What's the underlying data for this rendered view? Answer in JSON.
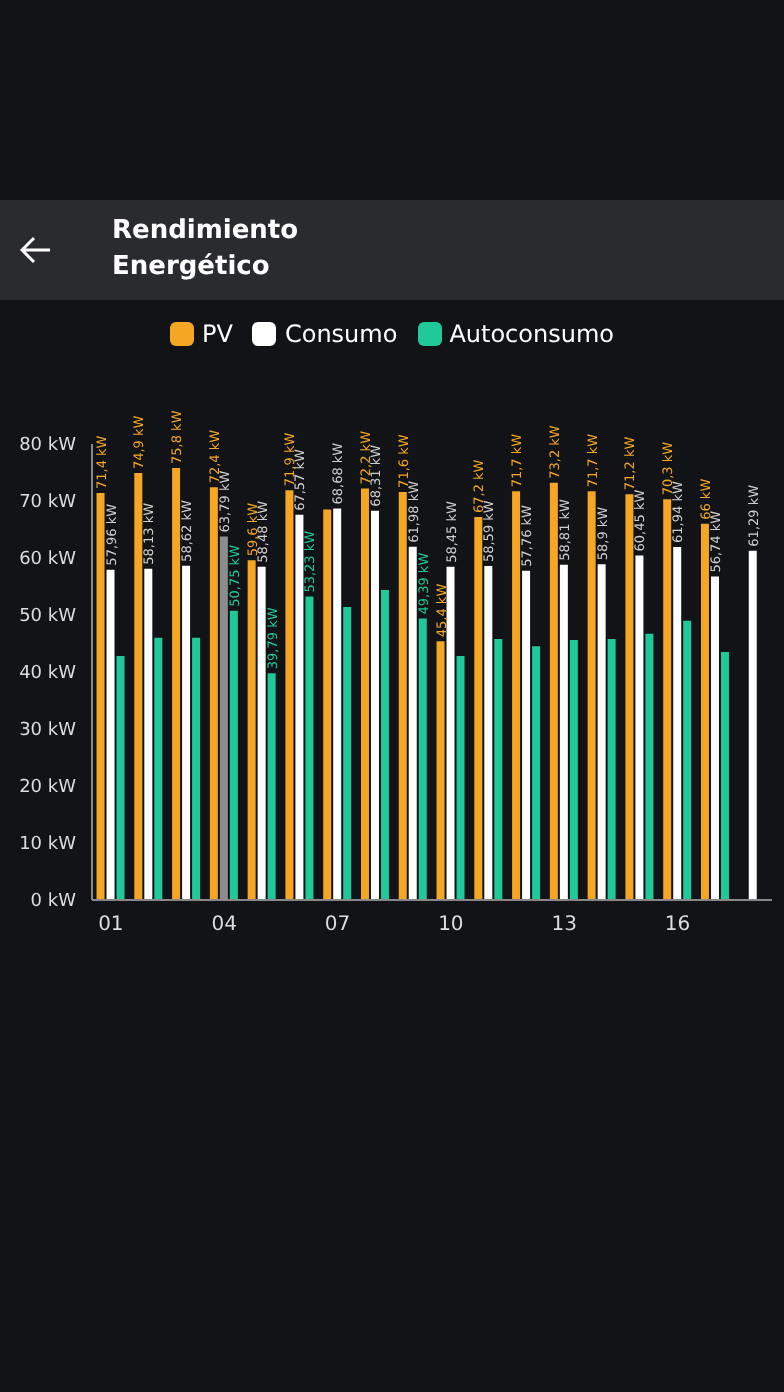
{
  "chart_data": {
    "type": "bar",
    "title": "Rendimiento Energético",
    "categories": [
      "01",
      null,
      null,
      "04",
      null,
      null,
      "07",
      null,
      null,
      "10",
      null,
      null,
      "13",
      null,
      null,
      "16",
      null,
      null
    ],
    "series": [
      {
        "name": "PV",
        "color": "#f5a623",
        "values": [
          71.4,
          74.9,
          75.8,
          72.4,
          59.6,
          71.9,
          68.5,
          72.2,
          71.6,
          45.4,
          67.2,
          71.7,
          73.2,
          71.7,
          71.2,
          70.3,
          66,
          null
        ],
        "value_labels": [
          "71,4 kW",
          "74,9 kW",
          "75,8 kW",
          "72,4 kW",
          "59,6 kW",
          "71,9 kW",
          null,
          "72,2 kW",
          "71,6 kW",
          "45,4 kW",
          "67,2 kW",
          "71,7 kW",
          "73,2 kW",
          "71,7 kW",
          "71,2 kW",
          "70,3 kW",
          "66 kW",
          null
        ]
      },
      {
        "name": "Consumo",
        "color": "#ffffff",
        "colors": [
          "#ffffff",
          "#ffffff",
          "#ffffff",
          "#8c8c8c",
          "#ffffff",
          "#ffffff",
          "#ffffff",
          "#ffffff",
          "#ffffff",
          "#ffffff",
          "#ffffff",
          "#ffffff",
          "#ffffff",
          "#ffffff",
          "#ffffff",
          "#ffffff",
          "#ffffff",
          "#ffffff"
        ],
        "values": [
          57.96,
          58.13,
          58.62,
          63.79,
          58.48,
          67.57,
          68.68,
          68.31,
          61.98,
          58.45,
          58.59,
          57.76,
          58.81,
          58.9,
          60.45,
          61.94,
          56.74,
          61.29
        ],
        "value_labels": [
          "57,96 kW",
          "58,13 kW",
          "58,62 kW",
          "63,79 kW",
          "58,48 kW",
          "67,57 kW",
          "68,68 kW",
          "68,31 kW",
          "61,98 kW",
          "58,45 kW",
          "58,59 kW",
          "57,76 kW",
          "58,81 kW",
          "58,9 kW",
          "60,45 kW",
          "61,94 kW",
          "56,74 kW",
          "61,29 kW"
        ]
      },
      {
        "name": "Autoconsumo",
        "color": "#1fc99a",
        "values": [
          42.8,
          46,
          46,
          50.75,
          39.79,
          53.23,
          51.4,
          54.4,
          49.39,
          42.8,
          45.8,
          44.5,
          45.6,
          45.8,
          46.7,
          49,
          43.5,
          null
        ],
        "value_labels": [
          null,
          null,
          null,
          "50,75 kW",
          "39,79 kW",
          "53,23 kW",
          null,
          null,
          "49,39 kW",
          null,
          null,
          null,
          null,
          null,
          null,
          null,
          null,
          null
        ]
      }
    ],
    "ylim": [
      0,
      80
    ],
    "yticks": [
      {
        "value": 0,
        "label": "0 kW"
      },
      {
        "value": 10,
        "label": "10 kW"
      },
      {
        "value": 20,
        "label": "20 kW"
      },
      {
        "value": 30,
        "label": "30 kW"
      },
      {
        "value": 40,
        "label": "40 kW"
      },
      {
        "value": 50,
        "label": "50 kW"
      },
      {
        "value": 60,
        "label": "60 kW"
      },
      {
        "value": 70,
        "label": "70 kW"
      },
      {
        "value": 80,
        "label": "80 kW"
      }
    ],
    "legend": "top",
    "grid": false
  }
}
